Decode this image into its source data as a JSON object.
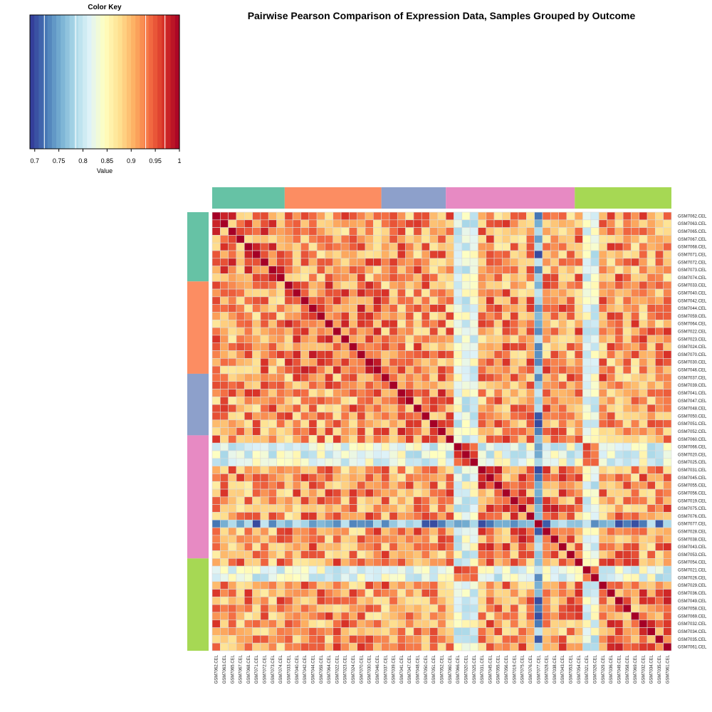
{
  "chart_data": {
    "type": "heatmap",
    "title": "Pairwise Pearson Comparison of Expression Data, Samples Grouped by Outcome",
    "legend": {
      "title": "Color Key",
      "xlabel": "Value",
      "ticks": [
        "0.7",
        "0.75",
        "0.8",
        "0.85",
        "0.9",
        "0.95",
        "1"
      ],
      "range": [
        0.69,
        1.0
      ],
      "palette": [
        "#313695",
        "#4575b4",
        "#74add1",
        "#abd9e9",
        "#e0f3f8",
        "#ffffbf",
        "#fee090",
        "#fdae61",
        "#f46d43",
        "#d73027",
        "#a50026"
      ]
    },
    "samples": [
      "GSM7062.CEL",
      "GSM7063.CEL",
      "GSM7065.CEL",
      "GSM7067.CEL",
      "GSM7068.CEL",
      "GSM7071.CEL",
      "GSM7072.CEL",
      "GSM7073.CEL",
      "GSM7074.CEL",
      "GSM7033.CEL",
      "GSM7040.CEL",
      "GSM7042.CEL",
      "GSM7044.CEL",
      "GSM7059.CEL",
      "GSM7064.CEL",
      "GSM7022.CEL",
      "GSM7023.CEL",
      "GSM7024.CEL",
      "GSM7070.CEL",
      "GSM7030.CEL",
      "GSM7046.CEL",
      "GSM7037.CEL",
      "GSM7039.CEL",
      "GSM7041.CEL",
      "GSM7047.CEL",
      "GSM7048.CEL",
      "GSM7050.CEL",
      "GSM7051.CEL",
      "GSM7052.CEL",
      "GSM7060.CEL",
      "GSM7066.CEL",
      "GSM7020.CEL",
      "GSM7025.CEL",
      "GSM7031.CEL",
      "GSM7045.CEL",
      "GSM7055.CEL",
      "GSM7056.CEL",
      "GSM7019.CEL",
      "GSM7075.CEL",
      "GSM7076.CEL",
      "GSM7077.CEL",
      "GSM7028.CEL",
      "GSM7038.CEL",
      "GSM7043.CEL",
      "GSM7053.CEL",
      "GSM7054.CEL",
      "GSM7021.CEL",
      "GSM7026.CEL",
      "GSM7029.CEL",
      "GSM7036.CEL",
      "GSM7049.CEL",
      "GSM7058.CEL",
      "GSM7069.CEL",
      "GSM7032.CEL",
      "GSM7034.CEL",
      "GSM7035.CEL",
      "GSM7061.CEL"
    ],
    "groups": [
      {
        "color": "#66c2a5",
        "start": 0,
        "size": 9
      },
      {
        "color": "#fc8d62",
        "start": 9,
        "size": 12
      },
      {
        "color": "#8da0cb",
        "start": 21,
        "size": 8
      },
      {
        "color": "#e78ac3",
        "start": 29,
        "size": 16
      },
      {
        "color": "#a6d854",
        "start": 45,
        "size": 12
      }
    ],
    "outlier_samples": {
      "weak": [
        "GSM7066.CEL",
        "GSM7020.CEL",
        "GSM7025.CEL",
        "GSM7021.CEL",
        "GSM7026.CEL"
      ],
      "strong": [
        "GSM7077.CEL"
      ]
    },
    "value_summary": {
      "diagonal": 1.0,
      "typical_off_diagonal": [
        0.86,
        0.97
      ],
      "weak_sample_pairs": [
        0.78,
        0.86
      ],
      "strong_outlier_pairs": [
        0.7,
        0.8
      ]
    },
    "grid": true
  }
}
